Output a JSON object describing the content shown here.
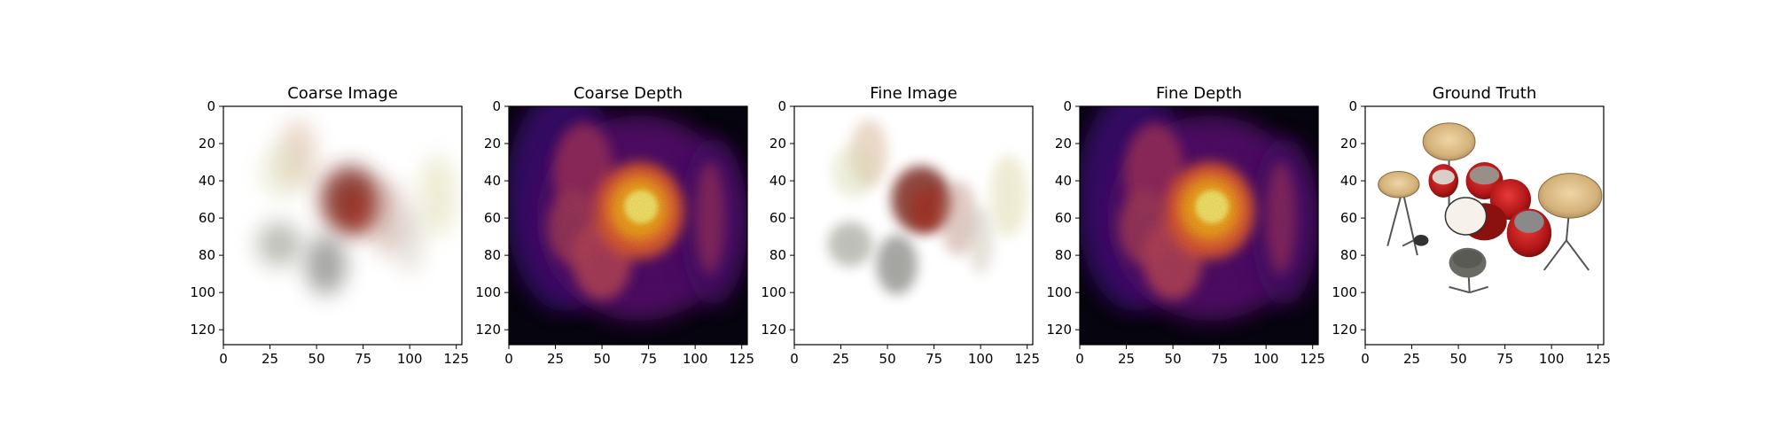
{
  "chart_data": [
    {
      "type": "image",
      "title": "Coarse Image",
      "colormap": "rgb",
      "xticks": [
        0,
        25,
        50,
        75,
        100,
        125
      ],
      "yticks": [
        0,
        20,
        40,
        60,
        80,
        100,
        120
      ],
      "xlim": [
        0,
        128
      ],
      "ylim": [
        128,
        0
      ],
      "content": "blurry semi-transparent rendering; dark red blob centered near (70, 52), grey blobs near (30, 75) and (55, 85), pale beige/green streaks near (40, 25) and (115, 50)"
    },
    {
      "type": "heatmap",
      "title": "Coarse Depth",
      "colormap": "inferno",
      "xticks": [
        0,
        25,
        50,
        75,
        100,
        125
      ],
      "yticks": [
        0,
        20,
        40,
        60,
        80,
        100,
        120
      ],
      "xlim": [
        0,
        128
      ],
      "ylim": [
        128,
        0
      ],
      "content": "brightest yellow region centered near (70, 55); orange/purple halo extending left to x≈20 and down to y≈100; dark background"
    },
    {
      "type": "image",
      "title": "Fine Image",
      "colormap": "rgb",
      "xticks": [
        0,
        25,
        50,
        75,
        100,
        125
      ],
      "yticks": [
        0,
        20,
        40,
        60,
        80,
        100,
        120
      ],
      "xlim": [
        0,
        128
      ],
      "ylim": [
        128,
        0
      ],
      "content": "slightly sharper version of coarse image; reddish blob near (70, 52), grey blob near (55, 85)"
    },
    {
      "type": "heatmap",
      "title": "Fine Depth",
      "colormap": "inferno",
      "xticks": [
        0,
        25,
        50,
        75,
        100,
        125
      ],
      "yticks": [
        0,
        20,
        40,
        60,
        80,
        100,
        120
      ],
      "xlim": [
        0,
        128
      ],
      "ylim": [
        128,
        0
      ],
      "content": "brightest yellow region centered near (72, 55); orange/purple halo similar to coarse depth"
    },
    {
      "type": "image",
      "title": "Ground Truth",
      "colormap": "rgb",
      "xticks": [
        0,
        25,
        50,
        75,
        100,
        125
      ],
      "yticks": [
        0,
        20,
        40,
        60,
        80,
        100,
        120
      ],
      "xlim": [
        0,
        128
      ],
      "ylim": [
        128,
        0
      ],
      "content": "drum kit on white background: cymbals near (45, 20), (18, 42), (110, 48); red drums near (60, 48)-(90, 65); white bass drum head near (55, 58); grey floor tom near (55, 85); stands below"
    }
  ]
}
